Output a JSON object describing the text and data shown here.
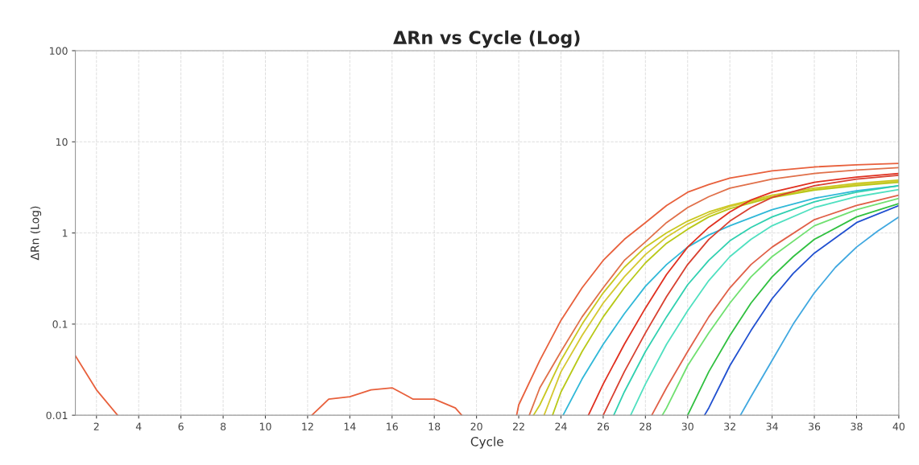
{
  "chart_data": {
    "type": "line",
    "title": "ΔRn vs Cycle (Log)",
    "xlabel": "Cycle",
    "ylabel": "ΔRn (Log)",
    "log": "y",
    "xlim": [
      1,
      40
    ],
    "ylim": [
      0.01,
      100
    ],
    "xticks": [
      2,
      4,
      6,
      8,
      10,
      12,
      14,
      16,
      18,
      20,
      22,
      24,
      26,
      28,
      30,
      32,
      34,
      36,
      38,
      40
    ],
    "yticks": [
      0.01,
      0.1,
      1,
      10,
      100
    ],
    "grid": true,
    "line_style": "solid",
    "marker": "none",
    "series": [
      {
        "color": "#e8603c",
        "x": [
          1,
          2,
          3,
          4,
          12.2,
          13,
          14,
          15,
          16,
          17,
          18,
          19,
          19.3,
          20,
          21.9,
          22,
          23,
          24,
          25,
          26,
          27,
          28,
          29,
          30,
          31,
          32,
          34,
          36,
          38,
          40
        ],
        "values": [
          0.045,
          0.019,
          0.01,
          null,
          0.01,
          0.015,
          0.016,
          0.019,
          0.02,
          0.015,
          0.015,
          0.012,
          0.01,
          null,
          0.01,
          0.013,
          0.04,
          0.11,
          0.25,
          0.5,
          0.85,
          1.3,
          2.0,
          2.8,
          3.4,
          4.0,
          4.8,
          5.3,
          5.6,
          5.8
        ]
      },
      {
        "color": "#e0704a",
        "x": [
          22.5,
          23,
          24,
          25,
          26,
          27,
          28,
          29,
          30,
          31,
          32,
          34,
          36,
          38,
          40
        ],
        "values": [
          0.01,
          0.02,
          0.05,
          0.12,
          0.25,
          0.5,
          0.8,
          1.3,
          1.9,
          2.5,
          3.1,
          3.9,
          4.5,
          4.9,
          5.2
        ]
      },
      {
        "color": "#c8c820",
        "x": [
          22.7,
          23,
          24,
          25,
          26,
          27,
          28,
          29,
          30,
          31,
          32,
          34,
          36,
          38,
          40
        ],
        "values": [
          0.01,
          0.013,
          0.04,
          0.1,
          0.22,
          0.42,
          0.7,
          1.0,
          1.35,
          1.7,
          2.0,
          2.6,
          3.1,
          3.5,
          3.8
        ]
      },
      {
        "color": "#d4c830",
        "x": [
          23.2,
          24,
          25,
          26,
          27,
          28,
          29,
          30,
          31,
          32,
          34,
          36,
          38,
          40
        ],
        "values": [
          0.01,
          0.03,
          0.075,
          0.17,
          0.33,
          0.58,
          0.9,
          1.25,
          1.6,
          1.95,
          2.5,
          3.0,
          3.4,
          3.7
        ]
      },
      {
        "color": "#b8c818",
        "x": [
          23.6,
          24,
          25,
          26,
          27,
          28,
          29,
          30,
          31,
          32,
          34,
          36,
          38,
          40
        ],
        "values": [
          0.01,
          0.018,
          0.05,
          0.12,
          0.25,
          0.47,
          0.77,
          1.1,
          1.5,
          1.85,
          2.45,
          2.95,
          3.3,
          3.6
        ]
      },
      {
        "color": "#30b8d8",
        "x": [
          24.1,
          25,
          26,
          27,
          28,
          29,
          30,
          31,
          32,
          34,
          36,
          38,
          40
        ],
        "values": [
          0.01,
          0.025,
          0.06,
          0.13,
          0.26,
          0.45,
          0.7,
          0.95,
          1.2,
          1.8,
          2.4,
          2.9,
          3.3
        ]
      },
      {
        "color": "#e03020",
        "x": [
          25.3,
          26,
          27,
          28,
          29,
          30,
          31,
          32,
          33,
          34,
          36,
          38,
          40
        ],
        "values": [
          0.01,
          0.022,
          0.06,
          0.15,
          0.35,
          0.7,
          1.15,
          1.7,
          2.3,
          2.8,
          3.6,
          4.1,
          4.5
        ]
      },
      {
        "color": "#d84030",
        "x": [
          26.0,
          27,
          28,
          29,
          30,
          31,
          32,
          33,
          34,
          36,
          38,
          40
        ],
        "values": [
          0.01,
          0.03,
          0.08,
          0.2,
          0.45,
          0.85,
          1.35,
          1.9,
          2.45,
          3.3,
          3.9,
          4.3
        ]
      },
      {
        "color": "#30d0b0",
        "x": [
          26.5,
          27,
          28,
          29,
          30,
          31,
          32,
          33,
          34,
          36,
          38,
          40
        ],
        "values": [
          0.01,
          0.018,
          0.05,
          0.12,
          0.27,
          0.5,
          0.82,
          1.15,
          1.5,
          2.2,
          2.8,
          3.3
        ]
      },
      {
        "color": "#50e0c0",
        "x": [
          27.3,
          28,
          29,
          30,
          31,
          32,
          33,
          34,
          36,
          38,
          40
        ],
        "values": [
          0.01,
          0.022,
          0.06,
          0.14,
          0.3,
          0.55,
          0.85,
          1.2,
          1.9,
          2.5,
          3.0
        ]
      },
      {
        "color": "#e06048",
        "x": [
          28.3,
          29,
          30,
          31,
          32,
          33,
          34,
          36,
          38,
          40
        ],
        "values": [
          0.01,
          0.02,
          0.05,
          0.12,
          0.25,
          0.45,
          0.7,
          1.4,
          2.0,
          2.6
        ]
      },
      {
        "color": "#70e070",
        "x": [
          28.8,
          29,
          30,
          31,
          32,
          33,
          34,
          36,
          38,
          40
        ],
        "values": [
          0.01,
          0.012,
          0.035,
          0.08,
          0.17,
          0.33,
          0.55,
          1.2,
          1.8,
          2.4
        ]
      },
      {
        "color": "#30c040",
        "x": [
          30.0,
          31,
          32,
          33,
          34,
          35,
          36,
          38,
          40
        ],
        "values": [
          0.01,
          0.03,
          0.075,
          0.17,
          0.33,
          0.55,
          0.85,
          1.5,
          2.1
        ]
      },
      {
        "color": "#2050d0",
        "x": [
          30.8,
          31,
          32,
          33,
          34,
          35,
          36,
          38,
          40
        ],
        "values": [
          0.01,
          0.012,
          0.035,
          0.085,
          0.19,
          0.36,
          0.6,
          1.3,
          2.0
        ]
      },
      {
        "color": "#40a8e0",
        "x": [
          32.5,
          33,
          34,
          35,
          36,
          37,
          38,
          39,
          40
        ],
        "values": [
          0.01,
          0.016,
          0.04,
          0.1,
          0.22,
          0.42,
          0.7,
          1.05,
          1.5
        ]
      }
    ]
  }
}
